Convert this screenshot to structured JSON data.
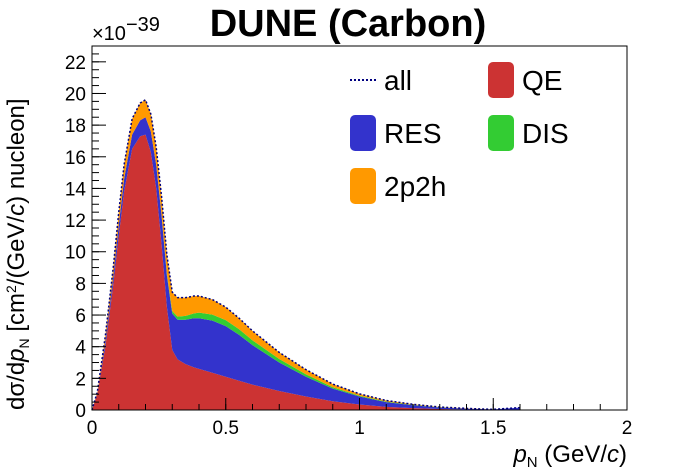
{
  "chart_data": {
    "type": "area",
    "title": "DUNE (Carbon)",
    "xlabel": {
      "main": "p",
      "sub": "N",
      "rest": " (GeV/",
      "unit_italic": "c",
      "close": ")"
    },
    "ylabel": {
      "p1": "dσ/d",
      "p2": "p",
      "p3": "N",
      "p4": " [cm",
      "p5": "2",
      "p6": "/(GeV/",
      "p7": "c",
      "p8": ") nucleon]"
    },
    "y_multiplier": {
      "base": "×10",
      "exp": "−39"
    },
    "xlim": [
      0,
      2
    ],
    "ylim": [
      0,
      23
    ],
    "x_ticks": [
      0,
      0.5,
      1,
      1.5,
      2
    ],
    "x_tick_labels": [
      "0",
      "0.5",
      "1",
      "1.5",
      "2"
    ],
    "y_ticks": [
      0,
      2,
      4,
      6,
      8,
      10,
      12,
      14,
      16,
      18,
      20,
      22
    ],
    "y_tick_labels": [
      "0",
      "2",
      "4",
      "6",
      "8",
      "10",
      "12",
      "14",
      "16",
      "18",
      "20",
      "22"
    ],
    "grid": false,
    "stacked": true,
    "legend_position": "top-right",
    "x": [
      0,
      0.02,
      0.05,
      0.08,
      0.1,
      0.12,
      0.15,
      0.18,
      0.2,
      0.22,
      0.24,
      0.26,
      0.28,
      0.3,
      0.32,
      0.35,
      0.38,
      0.4,
      0.45,
      0.5,
      0.55,
      0.6,
      0.7,
      0.8,
      0.9,
      1.0,
      1.1,
      1.2,
      1.3,
      1.4,
      1.5,
      1.6
    ],
    "series": [
      {
        "name": "QE",
        "color": "#cc3333",
        "values": [
          0,
          1.0,
          4.0,
          8.0,
          11.0,
          13.8,
          16.5,
          17.3,
          17.4,
          16.3,
          14.0,
          10.5,
          6.5,
          3.8,
          3.2,
          2.9,
          2.7,
          2.6,
          2.35,
          2.1,
          1.85,
          1.6,
          1.2,
          0.85,
          0.55,
          0.35,
          0.2,
          0.12,
          0.06,
          0.03,
          0.01,
          0.0
        ]
      },
      {
        "name": "RES",
        "color": "#3333cc",
        "values": [
          0,
          0.05,
          0.3,
          0.5,
          0.7,
          0.8,
          0.9,
          1.0,
          1.1,
          1.3,
          1.5,
          1.8,
          2.0,
          2.3,
          2.5,
          2.8,
          3.1,
          3.2,
          3.3,
          3.2,
          2.9,
          2.5,
          1.8,
          1.25,
          0.8,
          0.5,
          0.3,
          0.18,
          0.1,
          0.06,
          0.03,
          0.15
        ]
      },
      {
        "name": "DIS",
        "color": "#33cc33",
        "values": [
          0,
          0,
          0,
          0,
          0,
          0,
          0,
          0,
          0,
          0,
          0,
          0.05,
          0.1,
          0.15,
          0.2,
          0.25,
          0.3,
          0.35,
          0.38,
          0.38,
          0.35,
          0.3,
          0.22,
          0.15,
          0.09,
          0.05,
          0.03,
          0.02,
          0.01,
          0.0,
          0.0,
          0.0
        ]
      },
      {
        "name": "2p2h",
        "color": "#ff9900",
        "values": [
          0,
          0.1,
          0.4,
          0.6,
          0.8,
          0.9,
          1.0,
          1.1,
          1.1,
          1.1,
          1.1,
          1.15,
          1.2,
          1.2,
          1.2,
          1.15,
          1.1,
          1.05,
          0.95,
          0.82,
          0.7,
          0.6,
          0.42,
          0.3,
          0.2,
          0.12,
          0.07,
          0.04,
          0.02,
          0.01,
          0.0,
          0.0
        ]
      }
    ],
    "all_series": {
      "name": "all",
      "color": "#000080",
      "style": "dotted"
    }
  }
}
